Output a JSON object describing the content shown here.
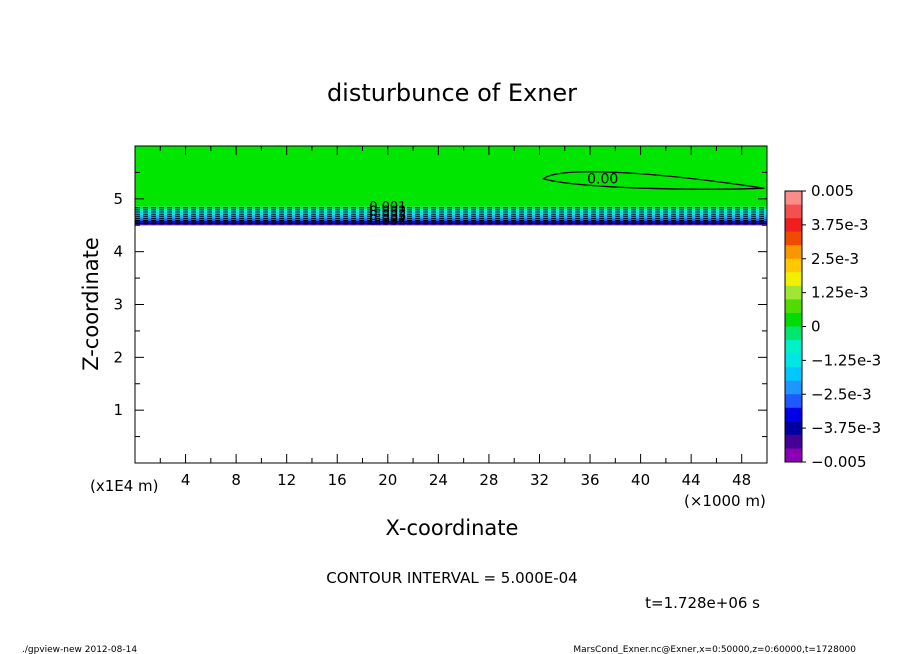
{
  "chart_data": {
    "type": "contour",
    "title": "disturbunce of Exner",
    "xlabel": "X-coordinate",
    "ylabel": "Z-coordinate",
    "x_unit": "(×1000 m)",
    "y_unit": "(x1E4 m)",
    "xlim": [
      0,
      50
    ],
    "ylim": [
      0,
      6
    ],
    "x_ticks": [
      4,
      8,
      12,
      16,
      20,
      24,
      28,
      32,
      36,
      40,
      44,
      48
    ],
    "y_ticks": [
      1,
      2,
      3,
      4,
      5
    ],
    "data_top_z": 4.5,
    "contour_interval_text": "CONTOUR INTERVAL = 5.000E-04",
    "time_text": "t=1.728e+06 s",
    "contour_labels": [
      {
        "text": "0.00",
        "x": 37,
        "z": 5.4
      },
      {
        "text": "-0.001",
        "x": 20,
        "z": 4.9
      },
      {
        "text": "-0.002",
        "x": 20,
        "z": 4.8
      },
      {
        "text": "-0.003",
        "x": 20,
        "z": 4.7
      },
      {
        "text": "-0.004",
        "x": 20,
        "z": 4.6
      }
    ],
    "colorbar": {
      "min": -0.005,
      "max": 0.005,
      "labels": [
        "0.005",
        "3.75e-3",
        "2.5e-3",
        "1.25e-3",
        "0",
        "−1.25e-3",
        "−2.5e-3",
        "−3.75e-3",
        "−0.005"
      ],
      "colors": [
        "#fa8c8c",
        "#f55050",
        "#f01e1e",
        "#f04b00",
        "#fa9600",
        "#ffc800",
        "#f0f000",
        "#a0e632",
        "#50dc00",
        "#00dc00",
        "#00e66e",
        "#00f0c8",
        "#00e6e6",
        "#00c8ff",
        "#1e96ff",
        "#1e5aff",
        "#0000e6",
        "#0000a0",
        "#460096",
        "#8c00b4"
      ]
    }
  },
  "footer": {
    "left": "./gpview-new  2012-08-14",
    "right": "MarsCond_Exner.nc@Exner,x=0:50000,z=0:60000,t=1728000"
  }
}
